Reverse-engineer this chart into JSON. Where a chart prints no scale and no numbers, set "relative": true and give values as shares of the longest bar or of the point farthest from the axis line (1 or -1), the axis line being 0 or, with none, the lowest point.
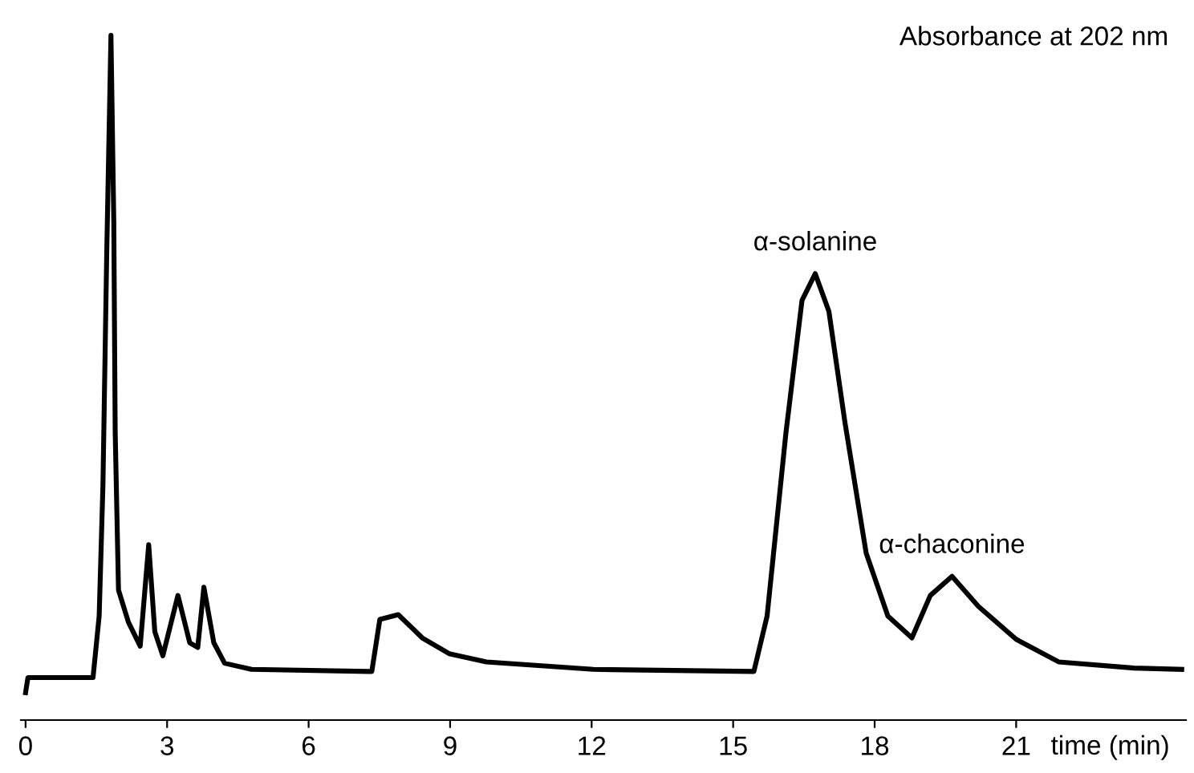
{
  "chart_data": {
    "type": "line",
    "relative": true,
    "xlabel": "time (min)",
    "x": [
      0.0,
      0.05,
      1.43,
      1.56,
      1.64,
      1.72,
      1.81,
      1.87,
      1.9,
      1.97,
      2.18,
      2.43,
      2.61,
      2.74,
      2.91,
      3.23,
      3.48,
      3.65,
      3.78,
      3.99,
      4.22,
      4.79,
      7.28,
      7.34,
      7.51,
      7.9,
      8.41,
      8.98,
      9.77,
      12.04,
      15.44,
      15.72,
      16.12,
      16.46,
      16.74,
      17.03,
      17.37,
      17.82,
      18.28,
      18.79,
      19.18,
      19.64,
      20.2,
      21.0,
      21.9,
      23.5,
      24.51
    ],
    "series": [
      {
        "color": "#000000",
        "values": [
          0.04,
          0.062,
          0.062,
          0.152,
          0.343,
          0.68,
          1.0,
          0.728,
          0.42,
          0.19,
          0.143,
          0.108,
          0.256,
          0.129,
          0.094,
          0.182,
          0.113,
          0.106,
          0.194,
          0.113,
          0.083,
          0.074,
          0.071,
          0.071,
          0.147,
          0.154,
          0.12,
          0.097,
          0.085,
          0.074,
          0.071,
          0.152,
          0.42,
          0.613,
          0.652,
          0.597,
          0.435,
          0.244,
          0.152,
          0.12,
          0.182,
          0.21,
          0.166,
          0.118,
          0.085,
          0.076,
          0.074
        ]
      }
    ],
    "xlim": [
      -0.1,
      24.6
    ],
    "xticks": [
      0,
      3,
      6,
      9,
      12,
      15,
      18,
      21
    ],
    "annotations": [
      "Absorbance at 202 nm",
      {
        "text": "α-solanine",
        "x": 16.74,
        "y": 0.652
      },
      {
        "text": "α-chaconine",
        "x": 19.64,
        "y": 0.21
      }
    ],
    "grid": false,
    "marker": "none",
    "line_style": "solid"
  }
}
